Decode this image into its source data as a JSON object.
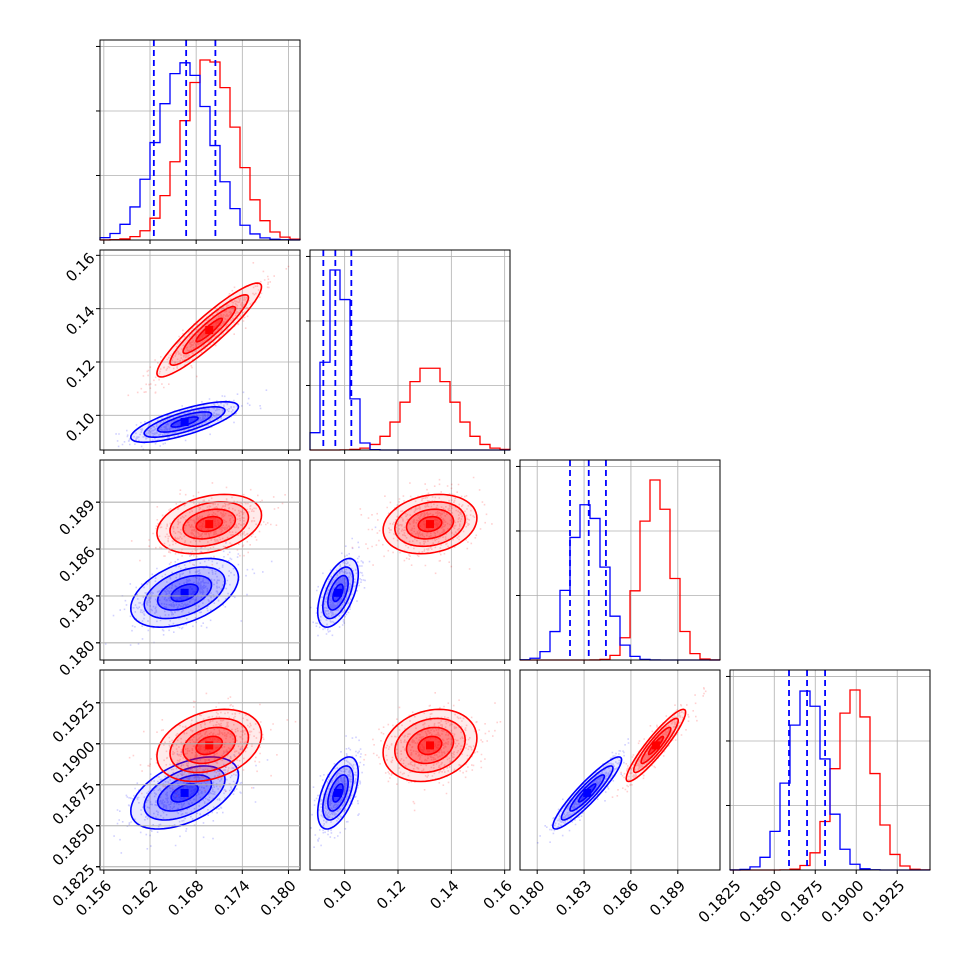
{
  "chart_data": {
    "type": "corner",
    "colors": {
      "red": "#ff0000",
      "blue": "#0000ff"
    },
    "params": [
      {
        "lim": [
          0.1555,
          0.1815
        ],
        "ticks": [
          "0.156",
          "0.162",
          "0.168",
          "0.174",
          "0.180"
        ],
        "red": {
          "mean": 0.1697,
          "sd": 0.0034
        },
        "blue": {
          "mean": 0.1665,
          "sd": 0.0035
        },
        "quantiles_dashed": [
          0.1625,
          0.1667,
          0.1705
        ]
      },
      {
        "lim": [
          0.087,
          0.162
        ],
        "ticks": [
          "0.10",
          "0.12",
          "0.14",
          "0.16"
        ],
        "red": {
          "mean": 0.132,
          "sd": 0.0088
        },
        "blue": {
          "mean": 0.0975,
          "sd": 0.0038
        },
        "quantiles_dashed": [
          0.092,
          0.0965,
          0.1025
        ]
      },
      {
        "lim": [
          0.1789,
          0.1917
        ],
        "ticks": [
          "0.180",
          "0.183",
          "0.186",
          "0.189"
        ],
        "red": {
          "mean": 0.1876,
          "sd": 0.00095
        },
        "blue": {
          "mean": 0.1832,
          "sd": 0.0011
        },
        "quantiles_dashed": [
          0.1821,
          0.1833,
          0.1844
        ]
      },
      {
        "lim": [
          0.1823,
          0.1945
        ],
        "ticks": [
          "0.1825",
          "0.1850",
          "0.1875",
          "0.1900",
          "0.1925"
        ],
        "red": {
          "mean": 0.1899,
          "sd": 0.0011
        },
        "blue": {
          "mean": 0.187,
          "sd": 0.0011
        },
        "quantiles_dashed": [
          0.1859,
          0.187,
          0.1881
        ]
      }
    ],
    "correlations": {
      "1-0": {
        "red": 0.92,
        "blue": 0.75
      },
      "2-0": {
        "red": 0.3,
        "blue": 0.45
      },
      "2-1": {
        "red": 0.2,
        "blue": 0.55
      },
      "3-0": {
        "red": 0.3,
        "blue": 0.5
      },
      "3-1": {
        "red": 0.2,
        "blue": 0.55
      },
      "3-2": {
        "red": 0.92,
        "blue": 0.92
      }
    },
    "grid": true,
    "legend": false
  }
}
